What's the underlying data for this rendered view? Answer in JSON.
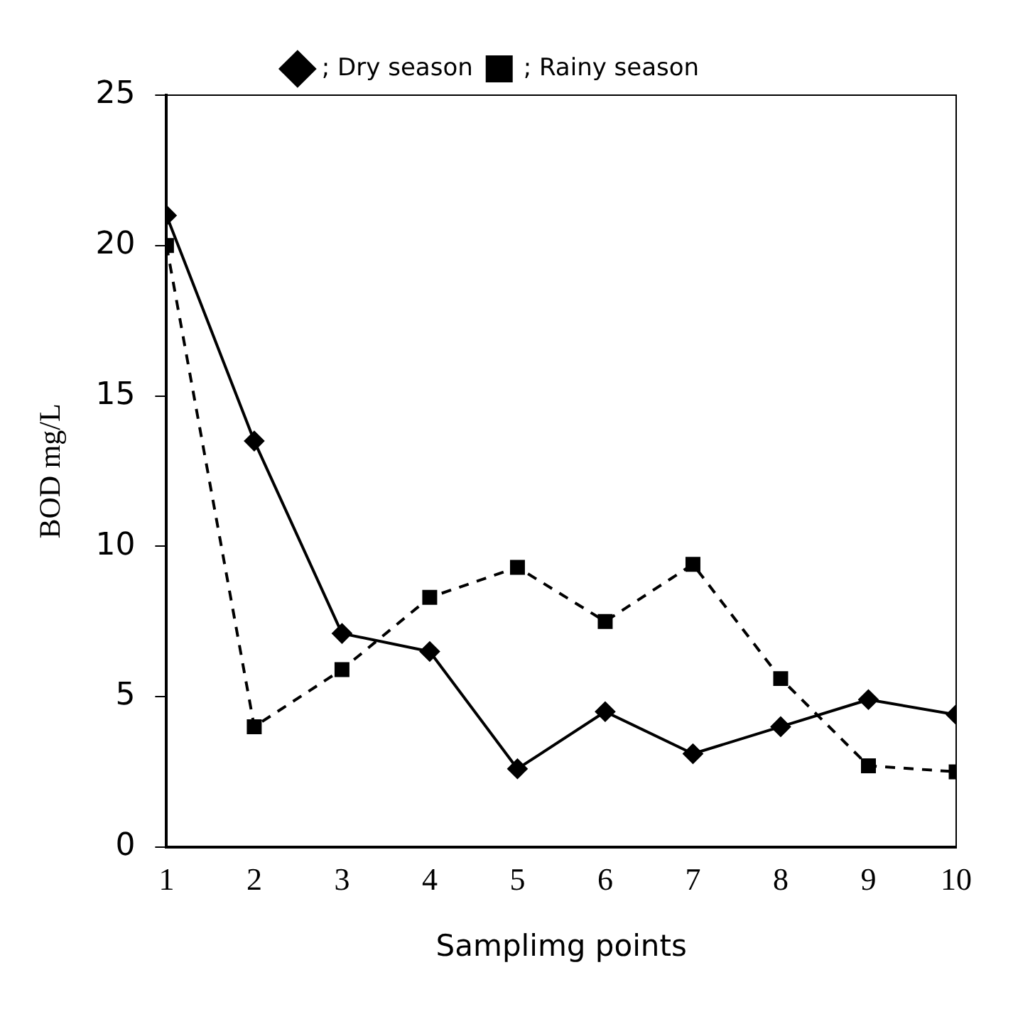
{
  "chart_data": {
    "type": "line",
    "xlabel": "Samplimg points",
    "ylabel": "BOD mg/L",
    "x": [
      1,
      2,
      3,
      4,
      5,
      6,
      7,
      8,
      9,
      10
    ],
    "xlim": [
      1,
      10
    ],
    "xticks": [
      1,
      2,
      3,
      4,
      5,
      6,
      7,
      8,
      9,
      10
    ],
    "ylim": [
      0,
      25
    ],
    "yticks": [
      0,
      5,
      10,
      15,
      20,
      25
    ],
    "grid": false,
    "legend": "top",
    "series": [
      {
        "name": "; Dry season",
        "color": "#000000",
        "marker": "diamond",
        "line_style": "solid",
        "values": [
          21.0,
          13.5,
          7.1,
          6.5,
          2.6,
          4.5,
          3.1,
          4.0,
          4.9,
          4.4
        ]
      },
      {
        "name": "; Rainy season",
        "color": "#000000",
        "marker": "square",
        "line_style": "dashed",
        "values": [
          20.0,
          4.0,
          5.9,
          8.3,
          9.3,
          7.5,
          9.4,
          5.6,
          2.7,
          2.5
        ]
      }
    ]
  }
}
